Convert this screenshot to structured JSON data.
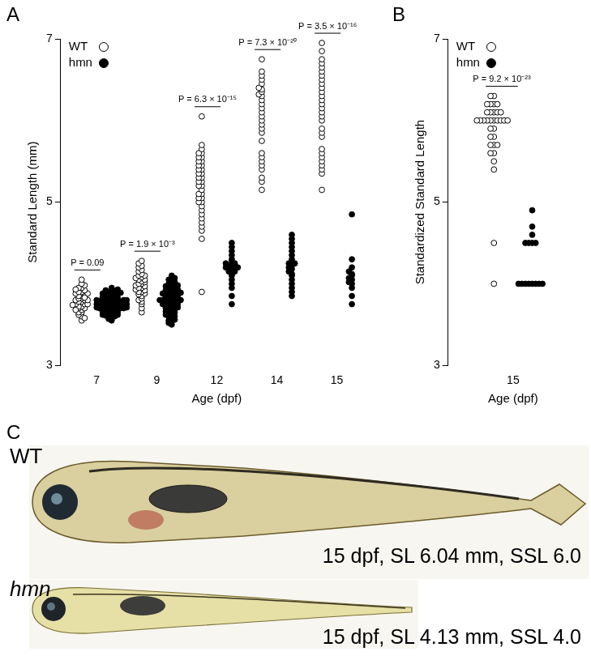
{
  "chart_data": [
    {
      "panel": "A",
      "type": "scatter",
      "x_label": "Age (dpf)",
      "y_label": "Standard Length (mm)",
      "categories": [
        "7",
        "9",
        "12",
        "14",
        "15"
      ],
      "ylim": [
        3,
        7
      ],
      "yticks": [
        3,
        5,
        7
      ],
      "grid": false,
      "legend": "upper left",
      "series": [
        {
          "name": "WT",
          "color": "#000000",
          "marker": "open-circle",
          "values": [
            [
              3.55,
              3.6,
              3.62,
              3.65,
              3.65,
              3.68,
              3.7,
              3.7,
              3.72,
              3.72,
              3.75,
              3.75,
              3.75,
              3.78,
              3.78,
              3.8,
              3.8,
              3.8,
              3.82,
              3.82,
              3.85,
              3.85,
              3.85,
              3.88,
              3.88,
              3.9,
              3.9,
              3.92,
              3.95,
              3.95,
              3.98,
              4.0,
              4.05,
              3.58,
              3.68,
              3.74,
              3.83,
              3.93
            ],
            [
              3.65,
              3.7,
              3.75,
              3.78,
              3.8,
              3.82,
              3.85,
              3.87,
              3.88,
              3.9,
              3.9,
              3.92,
              3.93,
              3.95,
              3.95,
              3.97,
              3.98,
              4.0,
              4.0,
              4.02,
              4.03,
              4.05,
              4.05,
              4.07,
              4.08,
              4.1,
              4.1,
              4.12,
              4.15,
              4.17,
              4.2,
              4.22,
              4.25,
              4.28
            ],
            [
              3.9,
              4.55,
              4.65,
              4.7,
              4.75,
              4.8,
              4.85,
              4.9,
              4.95,
              5.0,
              5.0,
              5.05,
              5.05,
              5.1,
              5.1,
              5.15,
              5.2,
              5.2,
              5.25,
              5.25,
              5.3,
              5.3,
              5.35,
              5.35,
              5.4,
              5.4,
              5.45,
              5.45,
              5.5,
              5.5,
              5.55,
              5.55,
              5.6,
              5.6,
              5.65,
              5.7,
              6.05
            ],
            [
              5.15,
              5.25,
              5.3,
              5.4,
              5.45,
              5.5,
              5.55,
              5.6,
              5.75,
              5.85,
              5.9,
              5.95,
              6.0,
              6.05,
              6.1,
              6.15,
              6.2,
              6.25,
              6.3,
              6.32,
              6.35,
              6.38,
              6.4,
              6.45,
              6.5,
              6.55,
              6.6,
              6.75
            ],
            [
              5.15,
              5.35,
              5.4,
              5.45,
              5.5,
              5.55,
              5.6,
              5.65,
              5.8,
              5.85,
              5.9,
              6.0,
              6.05,
              6.1,
              6.15,
              6.2,
              6.25,
              6.3,
              6.35,
              6.4,
              6.45,
              6.5,
              6.55,
              6.6,
              6.65,
              6.7,
              6.75,
              6.85,
              6.95
            ]
          ]
        },
        {
          "name": "hmn",
          "color": "#000000",
          "marker": "filled-circle",
          "values": [
            [
              3.55,
              3.57,
              3.58,
              3.6,
              3.6,
              3.61,
              3.62,
              3.62,
              3.63,
              3.64,
              3.65,
              3.65,
              3.65,
              3.66,
              3.67,
              3.67,
              3.68,
              3.68,
              3.69,
              3.7,
              3.7,
              3.7,
              3.7,
              3.71,
              3.71,
              3.72,
              3.72,
              3.72,
              3.73,
              3.73,
              3.74,
              3.74,
              3.75,
              3.75,
              3.75,
              3.75,
              3.76,
              3.76,
              3.77,
              3.77,
              3.78,
              3.78,
              3.78,
              3.79,
              3.8,
              3.8,
              3.8,
              3.81,
              3.82,
              3.82,
              3.83,
              3.83,
              3.84,
              3.85,
              3.85,
              3.86,
              3.87,
              3.88,
              3.88,
              3.89,
              3.9,
              3.9,
              3.91,
              3.92,
              3.93,
              3.95
            ],
            [
              3.5,
              3.52,
              3.54,
              3.55,
              3.56,
              3.58,
              3.6,
              3.6,
              3.62,
              3.63,
              3.65,
              3.65,
              3.66,
              3.68,
              3.68,
              3.7,
              3.7,
              3.71,
              3.72,
              3.72,
              3.73,
              3.74,
              3.75,
              3.75,
              3.76,
              3.77,
              3.78,
              3.78,
              3.79,
              3.8,
              3.8,
              3.8,
              3.81,
              3.82,
              3.82,
              3.83,
              3.84,
              3.85,
              3.85,
              3.86,
              3.87,
              3.88,
              3.88,
              3.89,
              3.9,
              3.9,
              3.91,
              3.92,
              3.93,
              3.94,
              3.95,
              3.96,
              3.97,
              3.98,
              4.0,
              4.0,
              4.02,
              4.03,
              4.05,
              4.07,
              4.1
            ],
            [
              3.75,
              3.85,
              3.95,
              4.0,
              4.05,
              4.1,
              4.12,
              4.15,
              4.15,
              4.17,
              4.18,
              4.2,
              4.2,
              4.2,
              4.22,
              4.22,
              4.25,
              4.25,
              4.28,
              4.3,
              4.35,
              4.4,
              4.45,
              4.5
            ],
            [
              3.85,
              3.9,
              3.95,
              4.0,
              4.05,
              4.1,
              4.12,
              4.15,
              4.18,
              4.2,
              4.22,
              4.25,
              4.25,
              4.3,
              4.35,
              4.4,
              4.45,
              4.5,
              4.55,
              4.6
            ],
            [
              3.75,
              3.85,
              3.95,
              4.0,
              4.02,
              4.05,
              4.07,
              4.1,
              4.12,
              4.15,
              4.2,
              4.3,
              4.85
            ]
          ]
        }
      ],
      "annotations": [
        {
          "category": "7",
          "text": "P = 0.09"
        },
        {
          "category": "9",
          "text": "P = 1.9 × 10⁻³"
        },
        {
          "category": "12",
          "text": "P = 6.3 × 10⁻¹⁵"
        },
        {
          "category": "14",
          "text": "P = 7.3 × 10⁻²⁰"
        },
        {
          "category": "15",
          "text": "P = 3.5 × 10⁻¹⁶"
        }
      ]
    },
    {
      "panel": "B",
      "type": "scatter",
      "x_label": "Age (dpf)",
      "y_label": "Standardized Standard Length",
      "categories": [
        "15"
      ],
      "ylim": [
        3,
        7
      ],
      "yticks": [
        3,
        5,
        7
      ],
      "grid": false,
      "legend": "upper left",
      "series": [
        {
          "name": "WT",
          "color": "#000000",
          "marker": "open-circle",
          "values": [
            [
              4.0,
              4.5,
              5.4,
              5.5,
              5.6,
              5.6,
              5.7,
              5.7,
              5.7,
              5.8,
              5.8,
              5.9,
              5.9,
              6.0,
              6.0,
              6.0,
              6.0,
              6.0,
              6.0,
              6.0,
              6.0,
              6.0,
              6.0,
              6.1,
              6.1,
              6.1,
              6.1,
              6.1,
              6.2,
              6.2,
              6.2,
              6.2,
              6.3,
              6.3
            ]
          ]
        },
        {
          "name": "hmn",
          "color": "#000000",
          "marker": "filled-circle",
          "values": [
            [
              4.0,
              4.0,
              4.0,
              4.0,
              4.0,
              4.0,
              4.0,
              4.0,
              4.5,
              4.5,
              4.5,
              4.5,
              4.6,
              4.7,
              4.9
            ]
          ]
        }
      ],
      "annotations": [
        {
          "category": "15",
          "text": "P = 9.2 × 10⁻²³"
        }
      ]
    }
  ],
  "photo_panel": {
    "panel": "C",
    "fish": [
      {
        "label": "WT",
        "caption": "15 dpf, SL 6.04 mm, SSL 6.0"
      },
      {
        "label": "hmn",
        "caption": "15 dpf, SL 4.13 mm, SSL 4.0"
      }
    ]
  }
}
